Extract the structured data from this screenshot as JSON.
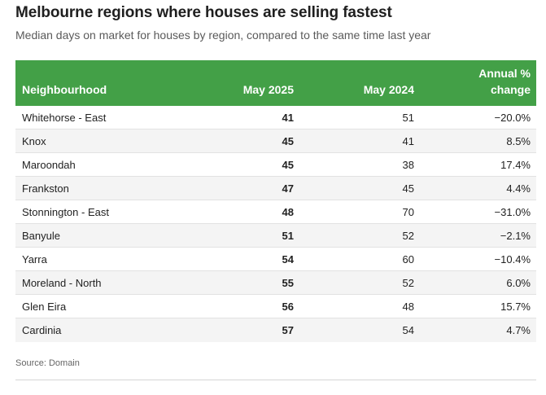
{
  "title": "Melbourne regions where houses are selling fastest",
  "subtitle": "Median days on market for houses by region, compared to the same time last year",
  "source": "Source: Domain",
  "colors": {
    "header_bg": "#43a047",
    "header_text": "#ffffff",
    "row_shade": "#f4f4f4"
  },
  "chart_data": {
    "type": "table",
    "title": "Melbourne regions where houses are selling fastest",
    "subtitle": "Median days on market for houses by region, compared to the same time last year",
    "columns": [
      "Neighbourhood",
      "May 2025",
      "May 2024",
      "Annual % change"
    ],
    "rows": [
      {
        "name": "Whitehorse - East",
        "may2025": "41",
        "may2024": "51",
        "change": "−20.0%"
      },
      {
        "name": "Knox",
        "may2025": "45",
        "may2024": "41",
        "change": "8.5%"
      },
      {
        "name": "Maroondah",
        "may2025": "45",
        "may2024": "38",
        "change": "17.4%"
      },
      {
        "name": "Frankston",
        "may2025": "47",
        "may2024": "45",
        "change": "4.4%"
      },
      {
        "name": "Stonnington - East",
        "may2025": "48",
        "may2024": "70",
        "change": "−31.0%"
      },
      {
        "name": "Banyule",
        "may2025": "51",
        "may2024": "52",
        "change": "−2.1%"
      },
      {
        "name": "Yarra",
        "may2025": "54",
        "may2024": "60",
        "change": "−10.4%"
      },
      {
        "name": "Moreland - North",
        "may2025": "55",
        "may2024": "52",
        "change": "6.0%"
      },
      {
        "name": "Glen Eira",
        "may2025": "56",
        "may2024": "48",
        "change": "15.7%"
      },
      {
        "name": "Cardinia",
        "may2025": "57",
        "may2024": "54",
        "change": "4.7%"
      }
    ],
    "source": "Source: Domain"
  }
}
